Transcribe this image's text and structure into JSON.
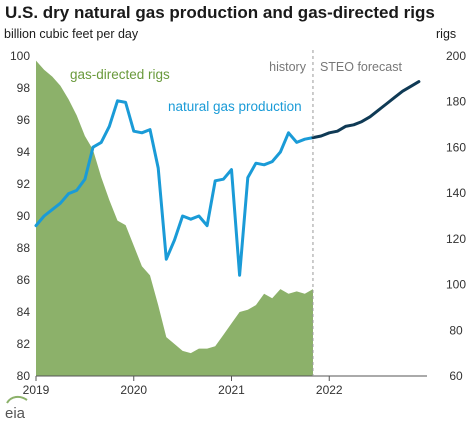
{
  "chart_data": {
    "type": "line",
    "title": "U.S. dry natural gas production and gas-directed rigs",
    "left_axis_unit": "billion cubic feet per day",
    "right_axis_unit": "rigs",
    "x_axis": {
      "type": "date",
      "range": [
        "2019-01",
        "2022-12"
      ],
      "tick_labels": [
        "2019",
        "2020",
        "2021",
        "2022"
      ]
    },
    "y_left": {
      "range": [
        80,
        100
      ],
      "ticks": [
        80,
        82,
        84,
        86,
        88,
        90,
        92,
        94,
        96,
        98,
        100
      ]
    },
    "y_right": {
      "range": [
        60,
        200
      ],
      "ticks": [
        60,
        80,
        100,
        120,
        140,
        160,
        180,
        200
      ]
    },
    "grid": false,
    "regions": [
      {
        "label": "history",
        "through": "2021-11"
      },
      {
        "label": "STEO forecast",
        "from": "2021-11"
      }
    ],
    "series": [
      {
        "name": "gas-directed rigs",
        "kind": "area",
        "axis": "right",
        "color": "#8cb16a",
        "points": [
          [
            "2019-01",
            198
          ],
          [
            "2019-02",
            194
          ],
          [
            "2019-03",
            191
          ],
          [
            "2019-04",
            187
          ],
          [
            "2019-05",
            181
          ],
          [
            "2019-06",
            174
          ],
          [
            "2019-07",
            165
          ],
          [
            "2019-08",
            159
          ],
          [
            "2019-09",
            147
          ],
          [
            "2019-10",
            137
          ],
          [
            "2019-11",
            128
          ],
          [
            "2019-12",
            126
          ],
          [
            "2020-01",
            117
          ],
          [
            "2020-02",
            108
          ],
          [
            "2020-03",
            104
          ],
          [
            "2020-04",
            91
          ],
          [
            "2020-05",
            77
          ],
          [
            "2020-06",
            74
          ],
          [
            "2020-07",
            71
          ],
          [
            "2020-08",
            70
          ],
          [
            "2020-09",
            72
          ],
          [
            "2020-10",
            72
          ],
          [
            "2020-11",
            73
          ],
          [
            "2020-12",
            78
          ],
          [
            "2021-01",
            83
          ],
          [
            "2021-02",
            88
          ],
          [
            "2021-03",
            89
          ],
          [
            "2021-04",
            91
          ],
          [
            "2021-05",
            96
          ],
          [
            "2021-06",
            94
          ],
          [
            "2021-07",
            98
          ],
          [
            "2021-08",
            96
          ],
          [
            "2021-09",
            97
          ],
          [
            "2021-10",
            96
          ],
          [
            "2021-11",
            98
          ]
        ]
      },
      {
        "name": "natural gas production",
        "kind": "line",
        "axis": "left",
        "color": "#1a9bd7",
        "points": [
          [
            "2019-01",
            89.4
          ],
          [
            "2019-02",
            90.0
          ],
          [
            "2019-03",
            90.4
          ],
          [
            "2019-04",
            90.8
          ],
          [
            "2019-05",
            91.4
          ],
          [
            "2019-06",
            91.6
          ],
          [
            "2019-07",
            92.3
          ],
          [
            "2019-08",
            94.3
          ],
          [
            "2019-09",
            94.6
          ],
          [
            "2019-10",
            95.6
          ],
          [
            "2019-11",
            97.2
          ],
          [
            "2019-12",
            97.1
          ],
          [
            "2020-01",
            95.3
          ],
          [
            "2020-02",
            95.2
          ],
          [
            "2020-03",
            95.4
          ],
          [
            "2020-04",
            93.0
          ],
          [
            "2020-05",
            87.3
          ],
          [
            "2020-06",
            88.5
          ],
          [
            "2020-07",
            90.0
          ],
          [
            "2020-08",
            89.8
          ],
          [
            "2020-09",
            90.0
          ],
          [
            "2020-10",
            89.4
          ],
          [
            "2020-11",
            92.2
          ],
          [
            "2020-12",
            92.3
          ],
          [
            "2021-01",
            92.9
          ],
          [
            "2021-02",
            86.3
          ],
          [
            "2021-03",
            92.4
          ],
          [
            "2021-04",
            93.3
          ],
          [
            "2021-05",
            93.2
          ],
          [
            "2021-06",
            93.4
          ],
          [
            "2021-07",
            94.0
          ],
          [
            "2021-08",
            95.2
          ],
          [
            "2021-09",
            94.6
          ],
          [
            "2021-10",
            94.8
          ],
          [
            "2021-11",
            94.9
          ]
        ]
      },
      {
        "name": "",
        "kind": "line",
        "axis": "left",
        "color": "#0f3a55",
        "points": [
          [
            "2021-11",
            94.9
          ],
          [
            "2021-12",
            95.0
          ],
          [
            "2022-01",
            95.2
          ],
          [
            "2022-02",
            95.3
          ],
          [
            "2022-03",
            95.6
          ],
          [
            "2022-04",
            95.7
          ],
          [
            "2022-05",
            95.9
          ],
          [
            "2022-06",
            96.2
          ],
          [
            "2022-07",
            96.6
          ],
          [
            "2022-08",
            97.0
          ],
          [
            "2022-09",
            97.4
          ],
          [
            "2022-10",
            97.8
          ],
          [
            "2022-11",
            98.1
          ],
          [
            "2022-12",
            98.4
          ]
        ]
      }
    ]
  },
  "logo_text": "eia"
}
